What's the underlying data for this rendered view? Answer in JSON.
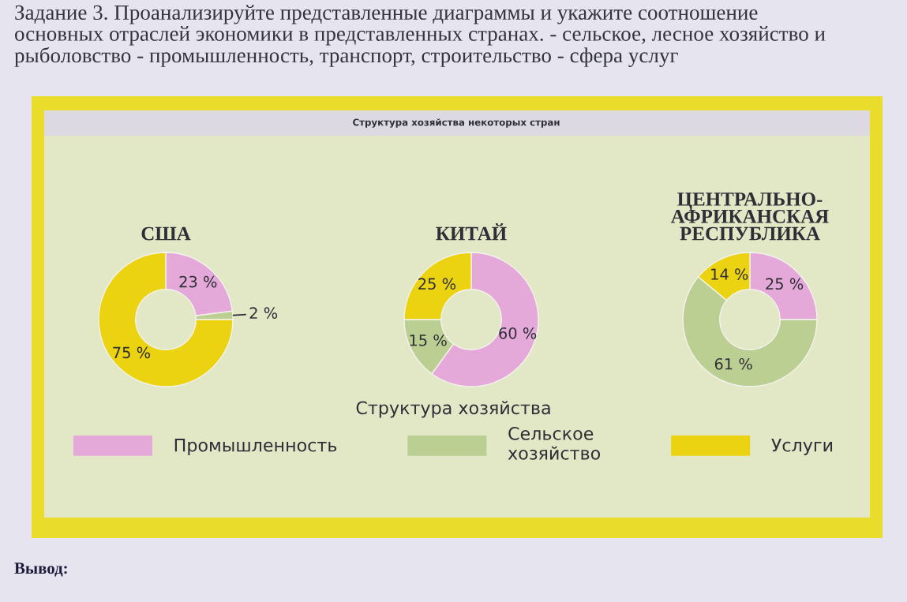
{
  "chart_data": [
    {
      "type": "donut",
      "title": "США",
      "categories": [
        null,
        null,
        null
      ],
      "values": [
        23,
        2,
        75
      ],
      "colors": [
        "#e4a9d9",
        "#bccf93",
        "#ecd312"
      ],
      "value_labels": [
        "23 %",
        "2 %",
        "75 %"
      ],
      "annotations": [
        "Задание 3. Проанализируйте представленные диаграммы и укажите соотношение\nосновных отраслей экономики в представленных странах. - сельское, лесное хозяйство и\nрыболовство - промышленность, транспорт, строительство - сфера услуг",
        "Структура хозяйства некоторых стран",
        "Вывод:"
      ]
    },
    {
      "type": "donut",
      "title": "КИТАЙ",
      "categories": [
        "Промышленность",
        "Сельское\nхозяйство",
        "Услуги"
      ],
      "values": [
        60,
        15,
        25
      ],
      "colors": [
        "#e4a9d9",
        "#bccf93",
        "#ecd312"
      ],
      "value_labels": [
        "60 %",
        "15 %",
        "25 %"
      ],
      "legend": "bottom",
      "legend_title": "Структура хозяйства"
    },
    {
      "type": "donut",
      "title": "ЦЕНТРАЛЬНО-\nАФРИКАНСКАЯ\nРЕСПУБЛИКА",
      "categories": [
        null,
        null,
        null
      ],
      "values": [
        25,
        61,
        14
      ],
      "colors": [
        "#e4a9d9",
        "#bccf93",
        "#ecd312"
      ],
      "value_labels": [
        "25 %",
        "61 %",
        "14 %"
      ]
    }
  ]
}
